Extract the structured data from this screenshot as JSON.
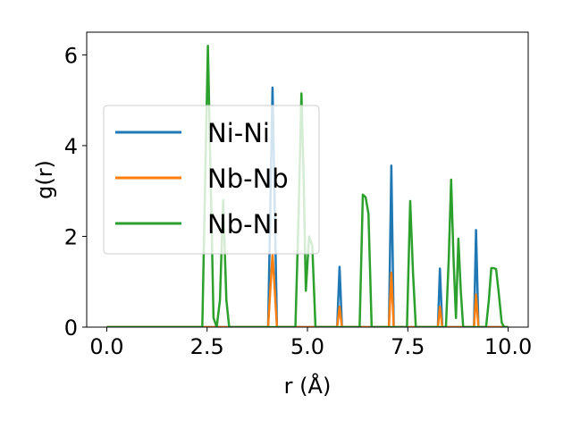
{
  "chart_data": {
    "type": "line",
    "title": "",
    "xlabel": "r (Å)",
    "ylabel": "g(r)",
    "xlim": [
      -0.5,
      10.5
    ],
    "ylim": [
      0,
      6.5
    ],
    "xticks": [
      "0.0",
      "2.5",
      "5.0",
      "7.5",
      "10.0"
    ],
    "yticks": [
      "0",
      "2",
      "4",
      "6"
    ],
    "grid": false,
    "legend_position": "left",
    "series": [
      {
        "name": "Ni-Ni",
        "color": "#1f77b4",
        "x": [
          0,
          4.02,
          4.08,
          4.13,
          4.18,
          4.24,
          5.74,
          5.8,
          5.86,
          7.03,
          7.09,
          7.15,
          8.25,
          8.3,
          8.36,
          9.15,
          9.2,
          9.26,
          10.0
        ],
        "y": [
          0,
          0,
          2.9,
          5.28,
          2.9,
          0,
          0,
          1.33,
          0,
          0,
          3.56,
          0,
          0,
          1.29,
          0,
          0,
          2.14,
          0,
          0
        ]
      },
      {
        "name": "Nb-Nb",
        "color": "#ff7f0e",
        "x": [
          0,
          4.02,
          4.08,
          4.13,
          4.18,
          4.24,
          5.74,
          5.8,
          5.86,
          7.03,
          7.09,
          7.15,
          8.25,
          8.3,
          8.36,
          9.15,
          9.2,
          9.26,
          10.0
        ],
        "y": [
          0,
          0,
          0.9,
          1.6,
          0.9,
          0,
          0,
          0.45,
          0,
          0,
          1.2,
          0,
          0,
          0.45,
          0,
          0,
          0.72,
          0,
          0
        ]
      },
      {
        "name": "Nb-Ni",
        "color": "#2ca02c",
        "x": [
          0,
          2.38,
          2.46,
          2.52,
          2.58,
          2.66,
          2.74,
          2.82,
          2.9,
          2.98,
          3.05,
          4.7,
          4.78,
          4.85,
          4.9,
          4.96,
          5.04,
          5.12,
          5.2,
          6.3,
          6.38,
          6.45,
          6.52,
          6.6,
          7.48,
          7.56,
          7.63,
          7.7,
          8.45,
          8.52,
          8.58,
          8.64,
          8.7,
          8.76,
          8.82,
          8.88,
          9.45,
          9.52,
          9.58,
          9.64,
          9.7,
          9.76,
          9.84,
          9.9,
          10.0
        ],
        "y": [
          0,
          0,
          3.6,
          6.2,
          3.6,
          0.2,
          0,
          0.6,
          2.8,
          0.6,
          0,
          0,
          2.5,
          5.15,
          3.5,
          0.8,
          2.0,
          1.8,
          0,
          0,
          2.92,
          2.86,
          2.5,
          0,
          0,
          2.78,
          1.2,
          0,
          0,
          1.5,
          3.25,
          1.5,
          0.2,
          1.95,
          0.8,
          0,
          0,
          0.6,
          1.3,
          1.3,
          1.28,
          0.8,
          0.1,
          0,
          0
        ]
      }
    ]
  }
}
